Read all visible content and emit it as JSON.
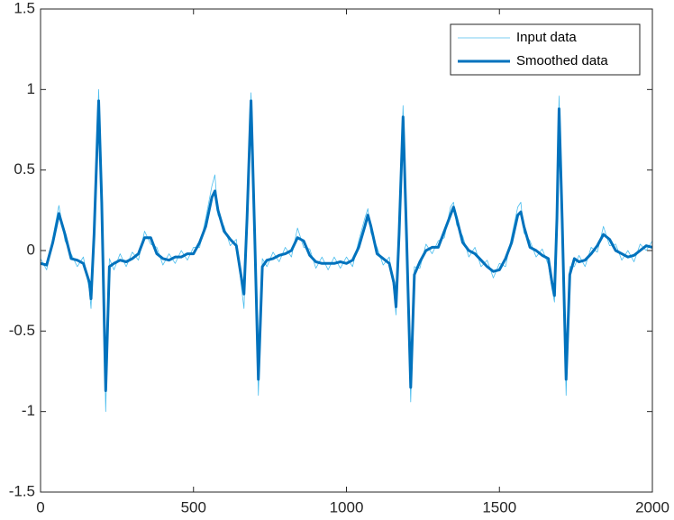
{
  "chart_data": {
    "type": "line",
    "x": [
      0,
      20,
      40,
      60,
      80,
      100,
      120,
      140,
      160,
      165,
      175,
      190,
      200,
      213,
      225,
      240,
      260,
      280,
      300,
      320,
      340,
      360,
      380,
      400,
      420,
      440,
      460,
      480,
      500,
      520,
      540,
      560,
      570,
      580,
      600,
      620,
      640,
      655,
      665,
      675,
      688,
      700,
      712,
      725,
      740,
      760,
      780,
      800,
      820,
      840,
      860,
      880,
      900,
      920,
      940,
      960,
      980,
      1000,
      1020,
      1040,
      1060,
      1070,
      1080,
      1100,
      1120,
      1140,
      1155,
      1162,
      1172,
      1185,
      1197,
      1210,
      1222,
      1240,
      1260,
      1280,
      1300,
      1320,
      1340,
      1350,
      1360,
      1380,
      1400,
      1420,
      1440,
      1460,
      1480,
      1500,
      1520,
      1540,
      1560,
      1570,
      1580,
      1600,
      1620,
      1640,
      1660,
      1672,
      1680,
      1688,
      1695,
      1705,
      1718,
      1730,
      1745,
      1760,
      1780,
      1800,
      1820,
      1840,
      1860,
      1880,
      1900,
      1920,
      1940,
      1960,
      1980,
      2000
    ],
    "series": [
      {
        "name": "Input data",
        "color": "#4dbeee",
        "width": 0.8,
        "values": [
          -0.05,
          -0.12,
          0.08,
          0.28,
          0.06,
          -0.02,
          -0.1,
          -0.04,
          -0.25,
          -0.36,
          0.15,
          1.0,
          0.25,
          -1.0,
          -0.05,
          -0.12,
          -0.02,
          -0.1,
          -0.01,
          -0.06,
          0.12,
          0.04,
          0.02,
          -0.09,
          -0.02,
          -0.08,
          0.0,
          -0.06,
          0.02,
          0.02,
          0.2,
          0.4,
          0.47,
          0.22,
          0.15,
          0.03,
          0.07,
          -0.2,
          -0.36,
          0.25,
          0.98,
          0.05,
          -0.9,
          -0.05,
          -0.1,
          -0.01,
          -0.07,
          0.02,
          -0.04,
          0.14,
          0.02,
          0.01,
          -0.11,
          -0.04,
          -0.12,
          -0.04,
          -0.11,
          -0.04,
          -0.1,
          0.06,
          0.2,
          0.26,
          0.11,
          0.02,
          -0.09,
          -0.04,
          -0.25,
          -0.4,
          0.15,
          0.9,
          0.0,
          -0.94,
          -0.1,
          -0.11,
          0.04,
          -0.02,
          0.06,
          0.08,
          0.27,
          0.3,
          0.16,
          0.09,
          -0.04,
          0.02,
          -0.1,
          -0.06,
          -0.17,
          -0.08,
          -0.1,
          0.09,
          0.27,
          0.3,
          0.11,
          0.06,
          -0.04,
          0.01,
          -0.09,
          -0.24,
          -0.32,
          0.25,
          0.96,
          0.15,
          -0.9,
          -0.1,
          -0.1,
          -0.03,
          -0.1,
          0.02,
          -0.01,
          0.15,
          0.03,
          0.04,
          -0.06,
          0.0,
          -0.07,
          0.04,
          0.0,
          0.06
        ]
      },
      {
        "name": "Smoothed data",
        "color": "#0072bd",
        "width": 3,
        "values": [
          -0.08,
          -0.09,
          0.05,
          0.23,
          0.1,
          -0.05,
          -0.06,
          -0.08,
          -0.2,
          -0.3,
          0.1,
          0.93,
          0.3,
          -0.87,
          -0.1,
          -0.08,
          -0.06,
          -0.07,
          -0.05,
          -0.02,
          0.08,
          0.08,
          -0.02,
          -0.05,
          -0.06,
          -0.04,
          -0.04,
          -0.02,
          -0.02,
          0.05,
          0.15,
          0.33,
          0.37,
          0.25,
          0.12,
          0.07,
          0.03,
          -0.15,
          -0.27,
          0.2,
          0.93,
          0.1,
          -0.8,
          -0.1,
          -0.06,
          -0.05,
          -0.03,
          -0.02,
          0.0,
          0.08,
          0.06,
          -0.03,
          -0.07,
          -0.08,
          -0.08,
          -0.08,
          -0.07,
          -0.08,
          -0.06,
          0.02,
          0.15,
          0.22,
          0.15,
          -0.02,
          -0.05,
          -0.08,
          -0.2,
          -0.35,
          0.1,
          0.83,
          0.05,
          -0.85,
          -0.15,
          -0.07,
          0.0,
          0.02,
          0.02,
          0.12,
          0.22,
          0.27,
          0.2,
          0.05,
          0.0,
          -0.02,
          -0.06,
          -0.1,
          -0.13,
          -0.12,
          -0.05,
          0.05,
          0.22,
          0.24,
          0.15,
          0.02,
          0.0,
          -0.03,
          -0.05,
          -0.2,
          -0.28,
          0.2,
          0.88,
          0.2,
          -0.8,
          -0.15,
          -0.05,
          -0.07,
          -0.06,
          -0.02,
          0.03,
          0.1,
          0.07,
          0.0,
          -0.02,
          -0.04,
          -0.03,
          0.0,
          0.03,
          0.02
        ]
      }
    ],
    "xlim": [
      0,
      2000
    ],
    "xticks": [
      0,
      500,
      1000,
      1500,
      2000
    ],
    "ylim": [
      -1.5,
      1.5
    ],
    "yticks": [
      -1.5,
      -1,
      -0.5,
      0,
      0.5,
      1,
      1.5
    ],
    "grid": false,
    "legend": "northeast"
  }
}
